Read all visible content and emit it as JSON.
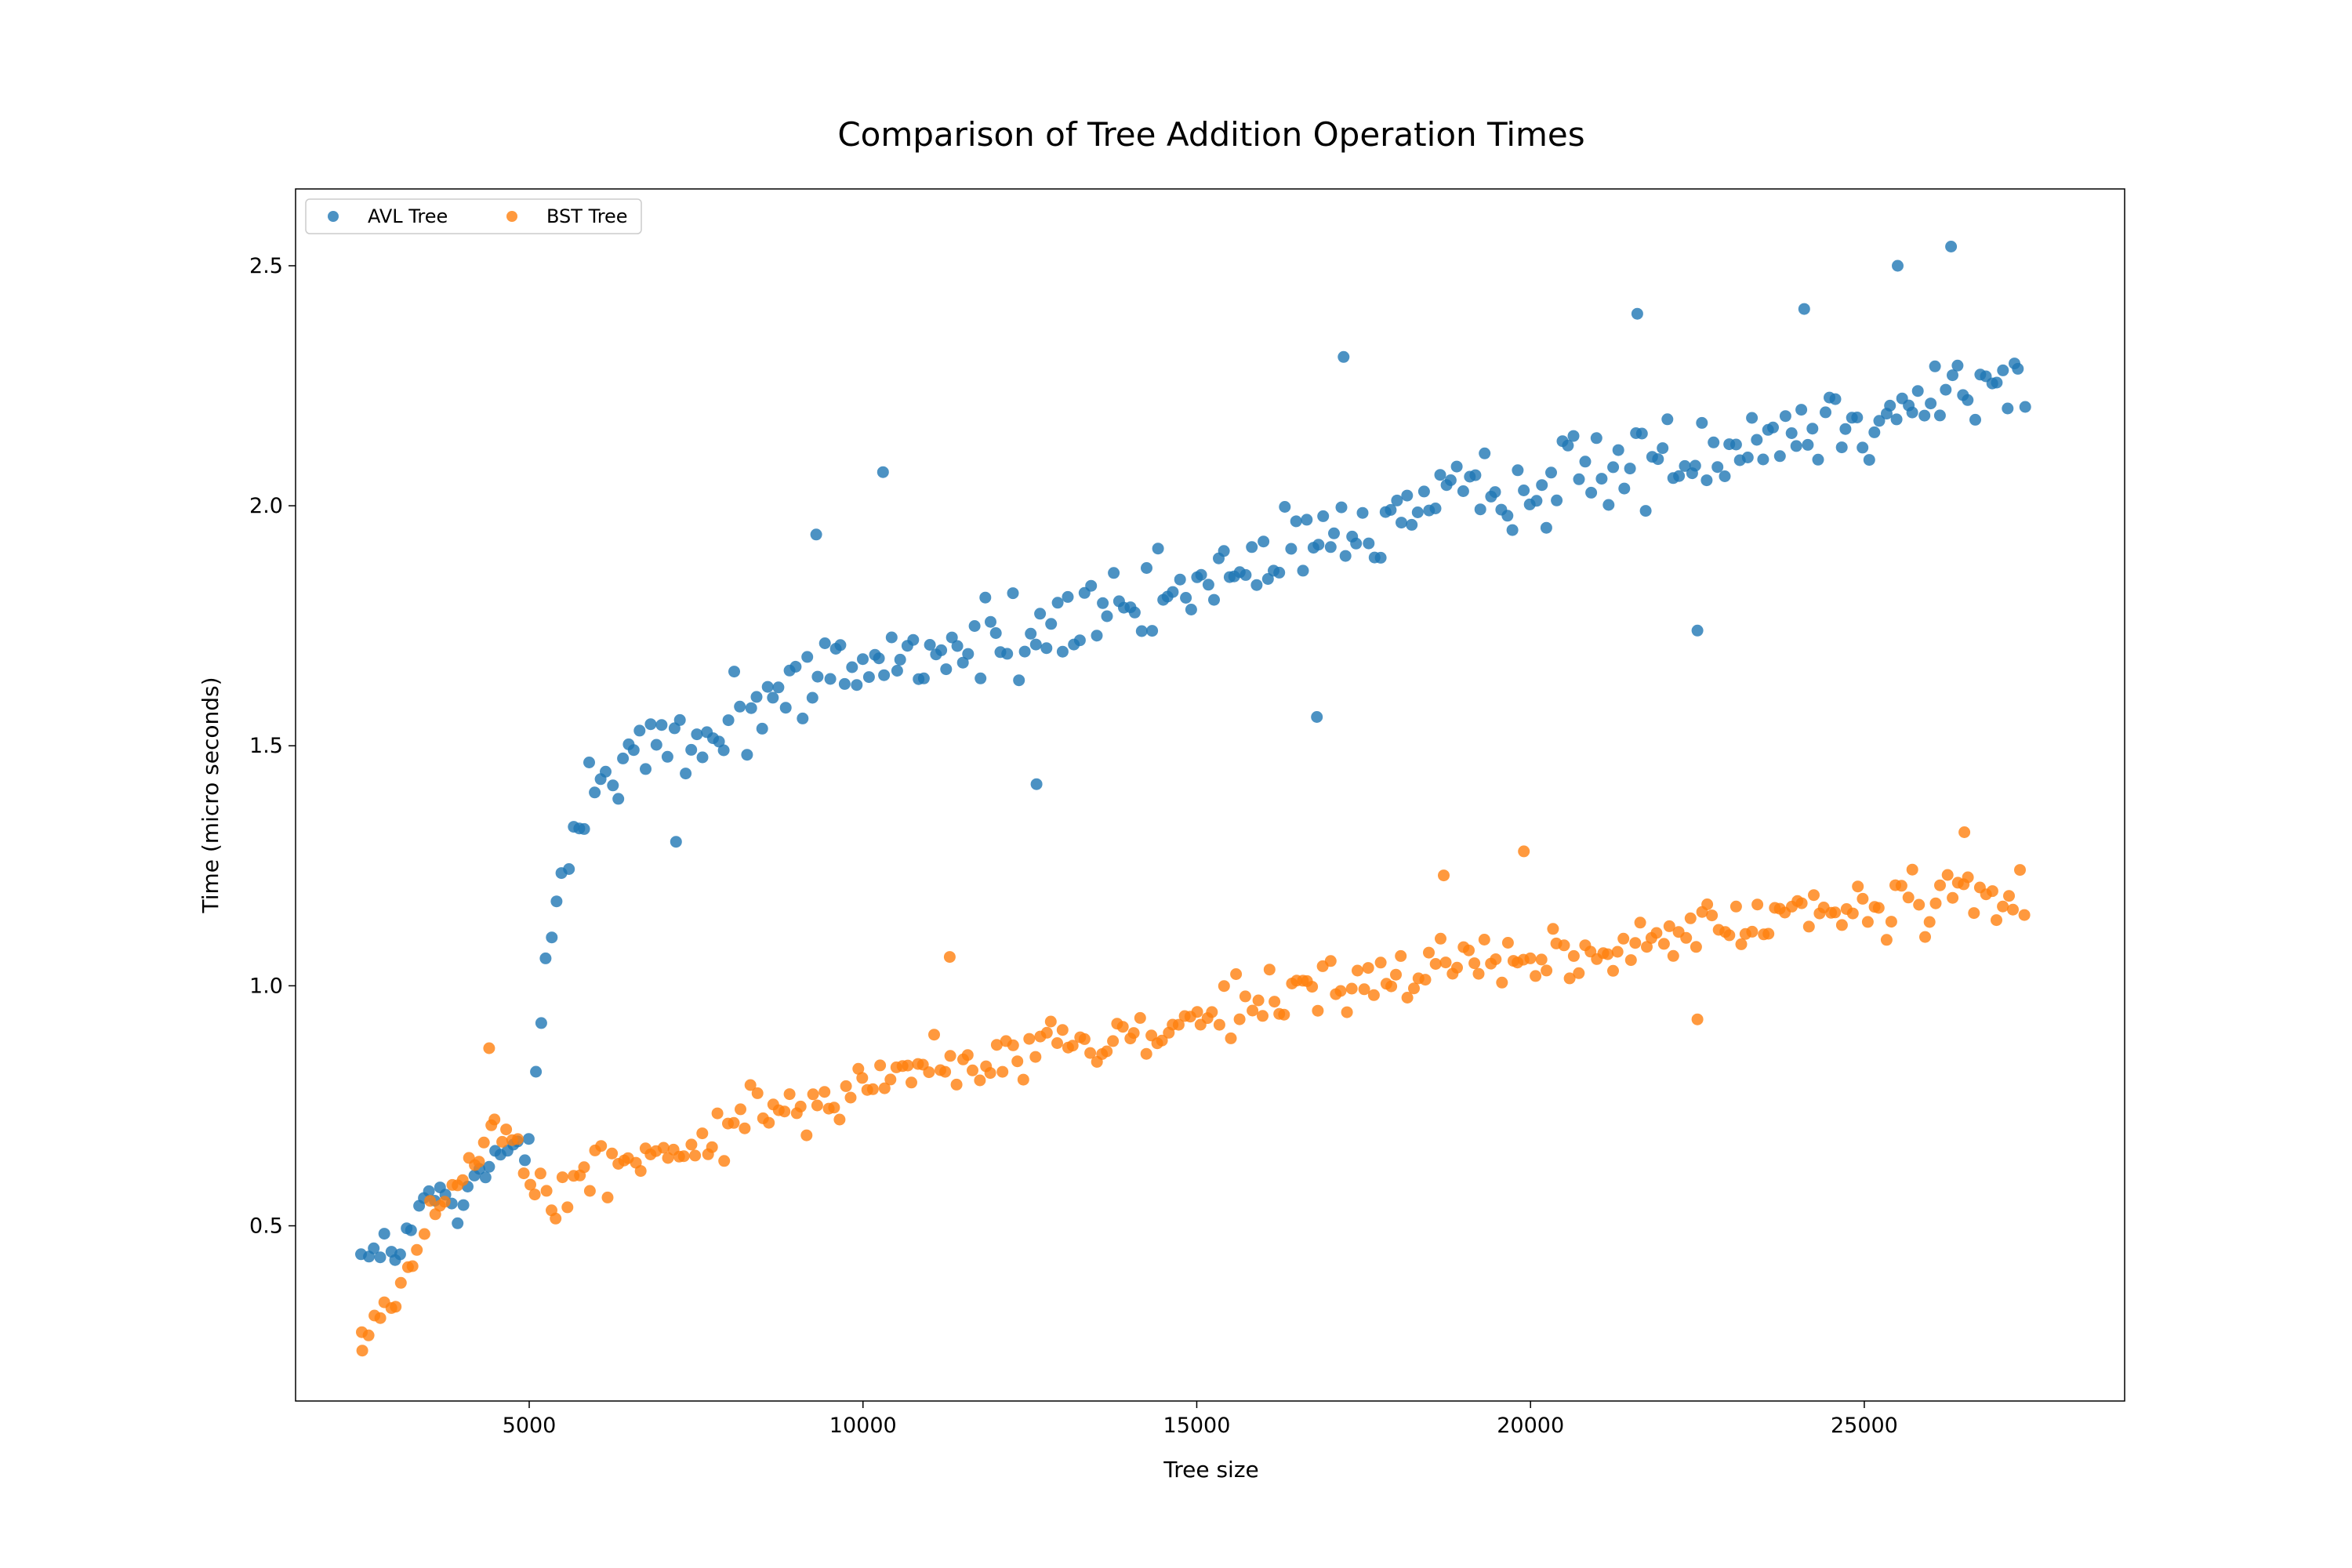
{
  "chart_data": {
    "type": "scatter",
    "title": "Comparison of Tree Addition Operation Times",
    "xlabel": "Tree size",
    "ylabel": "Time (micro seconds)",
    "xlim": [
      1500,
      28900
    ],
    "ylim": [
      0.135,
      2.66
    ],
    "xticks": [
      5000,
      10000,
      15000,
      20000,
      25000
    ],
    "yticks": [
      0.5,
      1.0,
      1.5,
      2.0,
      2.5
    ],
    "grid": false,
    "legend_position": "top-left",
    "series": [
      {
        "name": "AVL Tree",
        "color": "#1f77b4",
        "trend": {
          "x": [
            2500,
            3000,
            3500,
            4000,
            4500,
            5000,
            5300,
            5600,
            6000,
            7000,
            8000,
            9000,
            10000,
            12000,
            14000,
            16000,
            18000,
            20000,
            22000,
            24000,
            26000,
            27400
          ],
          "y": [
            0.455,
            0.44,
            0.56,
            0.54,
            0.64,
            0.68,
            1.08,
            1.3,
            1.46,
            1.48,
            1.56,
            1.62,
            1.68,
            1.72,
            1.78,
            1.88,
            1.98,
            2.04,
            2.1,
            2.16,
            2.22,
            2.26
          ]
        },
        "spread": 0.08,
        "count": 300,
        "highlights": [
          {
            "x": 26300,
            "y": 2.54
          },
          {
            "x": 25500,
            "y": 2.5
          },
          {
            "x": 21600,
            "y": 2.4
          },
          {
            "x": 24100,
            "y": 2.41
          },
          {
            "x": 10300,
            "y": 2.07
          },
          {
            "x": 17200,
            "y": 2.31
          },
          {
            "x": 9300,
            "y": 1.94
          },
          {
            "x": 16800,
            "y": 1.56
          },
          {
            "x": 22500,
            "y": 1.74
          },
          {
            "x": 12600,
            "y": 1.42
          },
          {
            "x": 7200,
            "y": 1.3
          }
        ]
      },
      {
        "name": "BST Tree",
        "color": "#ff7f0e",
        "trend": {
          "x": [
            2500,
            3000,
            3500,
            4000,
            4500,
            5000,
            5500,
            6000,
            7000,
            8000,
            9000,
            10000,
            12000,
            14000,
            16000,
            18000,
            20000,
            22000,
            24000,
            26000,
            27400
          ],
          "y": [
            0.28,
            0.34,
            0.52,
            0.6,
            0.72,
            0.6,
            0.57,
            0.62,
            0.64,
            0.7,
            0.76,
            0.8,
            0.85,
            0.9,
            0.97,
            1.02,
            1.06,
            1.09,
            1.15,
            1.17,
            1.17
          ]
        },
        "spread": 0.055,
        "count": 300,
        "highlights": [
          {
            "x": 26500,
            "y": 1.32
          },
          {
            "x": 19900,
            "y": 1.28
          },
          {
            "x": 18700,
            "y": 1.23
          },
          {
            "x": 11300,
            "y": 1.06
          },
          {
            "x": 22500,
            "y": 0.93
          },
          {
            "x": 4400,
            "y": 0.87
          },
          {
            "x": 2500,
            "y": 0.24
          }
        ]
      }
    ]
  }
}
